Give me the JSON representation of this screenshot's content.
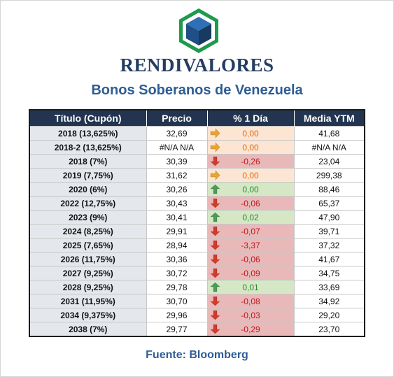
{
  "brand": "RENDIVALORES",
  "subtitle": "Bonos Soberanos de Venezuela",
  "logo_icon": "cube-logo-icon",
  "colors": {
    "header_bg": "#22344f",
    "brand_text": "#243e60",
    "subtitle_text": "#2e5d94",
    "flat_bg": "#fce5d3",
    "down_bg": "#e8b9b8",
    "up_bg": "#d6e7c6",
    "flat_arrow": "#e9a52e",
    "down_arrow": "#d4392a",
    "up_arrow": "#4e9b57"
  },
  "table": {
    "headers": [
      "Título (Cupón)",
      "Precio",
      "% 1 Día",
      "Media YTM"
    ],
    "rows": [
      {
        "title": "2018 (13,625%)",
        "price": "32,69",
        "change": "0,00",
        "trend": "flat",
        "ytm": "41,68"
      },
      {
        "title": "2018-2 (13,625%)",
        "price": "#N/A N/A",
        "change": "0,00",
        "trend": "flat",
        "ytm": "#N/A N/A"
      },
      {
        "title": "2018 (7%)",
        "price": "30,39",
        "change": "-0,26",
        "trend": "down",
        "ytm": "23,04"
      },
      {
        "title": "2019 (7,75%)",
        "price": "31,62",
        "change": "0,00",
        "trend": "flat",
        "ytm": "299,38"
      },
      {
        "title": "2020 (6%)",
        "price": "30,26",
        "change": "0,00",
        "trend": "up",
        "ytm": "88,46"
      },
      {
        "title": "2022 (12,75%)",
        "price": "30,43",
        "change": "-0,06",
        "trend": "down",
        "ytm": "65,37"
      },
      {
        "title": "2023 (9%)",
        "price": "30,41",
        "change": "0,02",
        "trend": "up",
        "ytm": "47,90"
      },
      {
        "title": "2024 (8,25%)",
        "price": "29,91",
        "change": "-0,07",
        "trend": "down",
        "ytm": "39,71"
      },
      {
        "title": "2025 (7,65%)",
        "price": "28,94",
        "change": "-3,37",
        "trend": "down",
        "ytm": "37,32"
      },
      {
        "title": "2026 (11,75%)",
        "price": "30,36",
        "change": "-0,06",
        "trend": "down",
        "ytm": "41,67"
      },
      {
        "title": "2027 (9,25%)",
        "price": "30,72",
        "change": "-0,09",
        "trend": "down",
        "ytm": "34,75"
      },
      {
        "title": "2028 (9,25%)",
        "price": "29,78",
        "change": "0,01",
        "trend": "up",
        "ytm": "33,69"
      },
      {
        "title": "2031 (11,95%)",
        "price": "30,70",
        "change": "-0,08",
        "trend": "down",
        "ytm": "34,92"
      },
      {
        "title": "2034 (9,375%)",
        "price": "29,96",
        "change": "-0,03",
        "trend": "down",
        "ytm": "29,20"
      },
      {
        "title": "2038 (7%)",
        "price": "29,77",
        "change": "-0,29",
        "trend": "down",
        "ytm": "23,70"
      }
    ]
  },
  "source": "Fuente: Bloomberg"
}
